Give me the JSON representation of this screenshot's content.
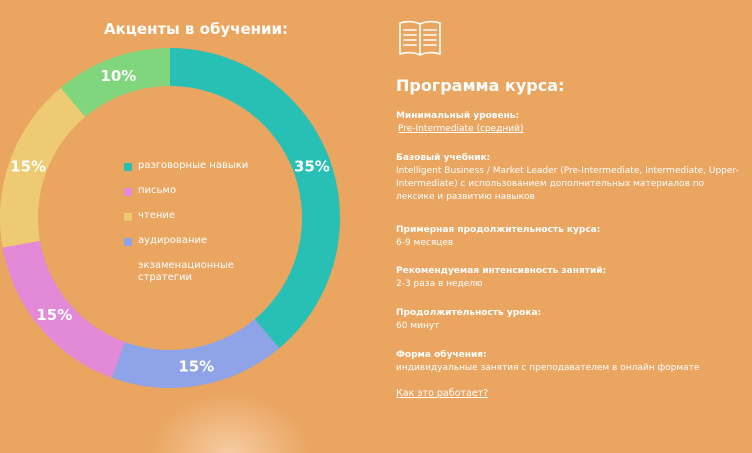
{
  "left": {
    "title": "Акценты в обучении:",
    "slices": [
      {
        "label": "разговорные навыки",
        "percent": 35,
        "percent_label": "35%",
        "color": "#28BFB4"
      },
      {
        "label": "аудирование",
        "percent": 15,
        "percent_label": "15%",
        "color": "#8FA3E8"
      },
      {
        "label": "письмо",
        "percent": 15,
        "percent_label": "15%",
        "color": "#E28AD8"
      },
      {
        "label": "чтение",
        "percent": 15,
        "percent_label": "15%",
        "color": "#EECB72"
      },
      {
        "label": "экзаменационные стратегии",
        "percent": 10,
        "percent_label": "10%",
        "color": "#80D67C"
      }
    ],
    "legend": [
      {
        "label": "разговорные навыки",
        "color": "#28BFB4"
      },
      {
        "label": "письмо",
        "color": "#E28AD8"
      },
      {
        "label": "чтение",
        "color": "#EECB72"
      },
      {
        "label": "аудирование",
        "color": "#8FA3E8"
      },
      {
        "label": "экзаменационные стратегии",
        "color": ""
      }
    ]
  },
  "right": {
    "icon": "open-book-icon",
    "title": "Программа курса:",
    "sections": [
      {
        "label": "Минимальный уровень:",
        "value": "Pre-Intermediate (средний)"
      },
      {
        "label": "Базовый учебник:",
        "value": "Intelligent Business / Market Leader (Pre-Intermediate, Intermediate, Upper-Intermediate) с использованием дополнительных материалов по лексике и развитию навыков"
      },
      {
        "label": "Примерная продолжительность курса:",
        "value": "6-9 месяцев"
      },
      {
        "label": "Рекомендуемая интенсивность занятий:",
        "value": "2-3 раза в неделю"
      },
      {
        "label": "Продолжительность урока:",
        "value": "60 минут"
      },
      {
        "label": "Форма обучения:",
        "value": "индивидуальные занятия с преподавателем в онлайн формате"
      }
    ],
    "link": "Как это работает?"
  }
}
